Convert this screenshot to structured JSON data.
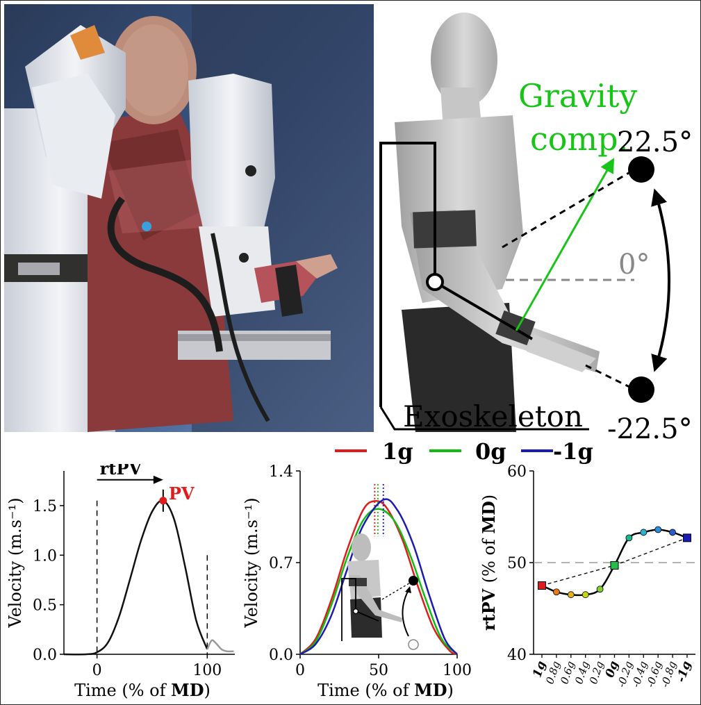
{
  "figure": {
    "photo_alt": "person-wearing-exoskeleton-photo",
    "diagram": {
      "gravity_label_line1": "Gravity",
      "gravity_label_line2": "comp.",
      "angle_up": "22.5°",
      "angle_zero": "0°",
      "angle_down": "-22.5°",
      "exo_label": "Exoskeleton"
    },
    "legend": [
      {
        "name": "1g",
        "color": "#e01b1b"
      },
      {
        "name": "0g",
        "color": "#11bb11"
      },
      {
        "name": "-1g",
        "color": "#1a1ab5"
      }
    ]
  },
  "chart_data": [
    {
      "type": "line",
      "panel": "left",
      "xlabel": "Time (% of MD)",
      "ylabel": "Velocity (m.s⁻¹)",
      "xlim": [
        -30,
        125
      ],
      "ylim": [
        0,
        1.85
      ],
      "xticks": [
        0,
        100
      ],
      "yticks": [
        0.0,
        0.5,
        1.0,
        1.5
      ],
      "ytick_labels": [
        "0.0",
        "0.5",
        "1.0",
        "1.5"
      ],
      "annotations": {
        "rtpv": "rtPV",
        "pv": "PV"
      },
      "peak": {
        "x": 60,
        "y": 1.55
      },
      "series": [
        {
          "color": "#111111",
          "x": [
            -30,
            -10,
            0,
            10,
            20,
            30,
            40,
            50,
            60,
            70,
            80,
            90,
            100
          ],
          "y": [
            0.0,
            0.0,
            0.02,
            0.12,
            0.38,
            0.76,
            1.15,
            1.44,
            1.55,
            1.36,
            0.88,
            0.34,
            0.05
          ]
        },
        {
          "color": "#999999",
          "x": [
            100,
            104,
            108,
            113,
            118,
            124
          ],
          "y": [
            0.05,
            0.14,
            0.11,
            0.05,
            0.03,
            0.03
          ]
        }
      ]
    },
    {
      "type": "line",
      "panel": "middle",
      "xlabel": "Time (% of MD)",
      "ylabel": "Velocity (m.s⁻¹)",
      "xlim": [
        0,
        100
      ],
      "ylim": [
        0,
        1.4
      ],
      "xticks": [
        0,
        50,
        100
      ],
      "yticks": [
        0.0,
        0.7,
        1.4
      ],
      "ytick_labels": [
        "0.0",
        "0.7",
        "1.4"
      ],
      "series": [
        {
          "name": "1g",
          "color": "#e01b1b",
          "peak_x": 47.5,
          "x": [
            0,
            10,
            20,
            30,
            40,
            47.5,
            55,
            65,
            75,
            85,
            95,
            100
          ],
          "y": [
            0.0,
            0.12,
            0.42,
            0.8,
            1.1,
            1.17,
            1.12,
            0.88,
            0.52,
            0.2,
            0.03,
            0.0
          ]
        },
        {
          "name": "0g",
          "color": "#11bb11",
          "peak_x": 49.5,
          "x": [
            0,
            10,
            20,
            30,
            40,
            49.5,
            60,
            70,
            80,
            90,
            100
          ],
          "y": [
            0.0,
            0.1,
            0.38,
            0.74,
            1.02,
            1.11,
            1.02,
            0.76,
            0.42,
            0.12,
            0.0
          ]
        },
        {
          "name": "-1g",
          "color": "#1a1ab5",
          "peak_x": 53,
          "x": [
            0,
            10,
            20,
            30,
            40,
            53,
            62,
            72,
            82,
            92,
            100
          ],
          "y": [
            0.0,
            0.08,
            0.3,
            0.65,
            0.98,
            1.18,
            1.1,
            0.84,
            0.46,
            0.12,
            0.0
          ]
        }
      ]
    },
    {
      "type": "line",
      "panel": "right",
      "ylabel": "rtPV (% of MD)",
      "ylim": [
        40,
        60
      ],
      "yticks": [
        40,
        50,
        60
      ],
      "ytick_labels": [
        "40",
        "50",
        "60"
      ],
      "reference_line": 50,
      "categories": [
        "1g",
        "0.8g",
        "0.6g",
        "0.4g",
        "0.2g",
        "0g",
        "-0.2g",
        "-0.4g",
        "-0.6g",
        "-0.8g",
        "-1g"
      ],
      "values": [
        47.5,
        46.8,
        46.5,
        46.5,
        47.1,
        49.7,
        52.7,
        53.3,
        53.6,
        53.3,
        52.7
      ],
      "point_colors": [
        "#e01b1b",
        "#e87b14",
        "#e0b020",
        "#c8d418",
        "#7fd030",
        "#22c048",
        "#1ab890",
        "#28b4d0",
        "#2a8ed8",
        "#2a5cd0",
        "#1a1ab5"
      ],
      "square_indices": [
        0,
        5,
        10
      ]
    }
  ]
}
